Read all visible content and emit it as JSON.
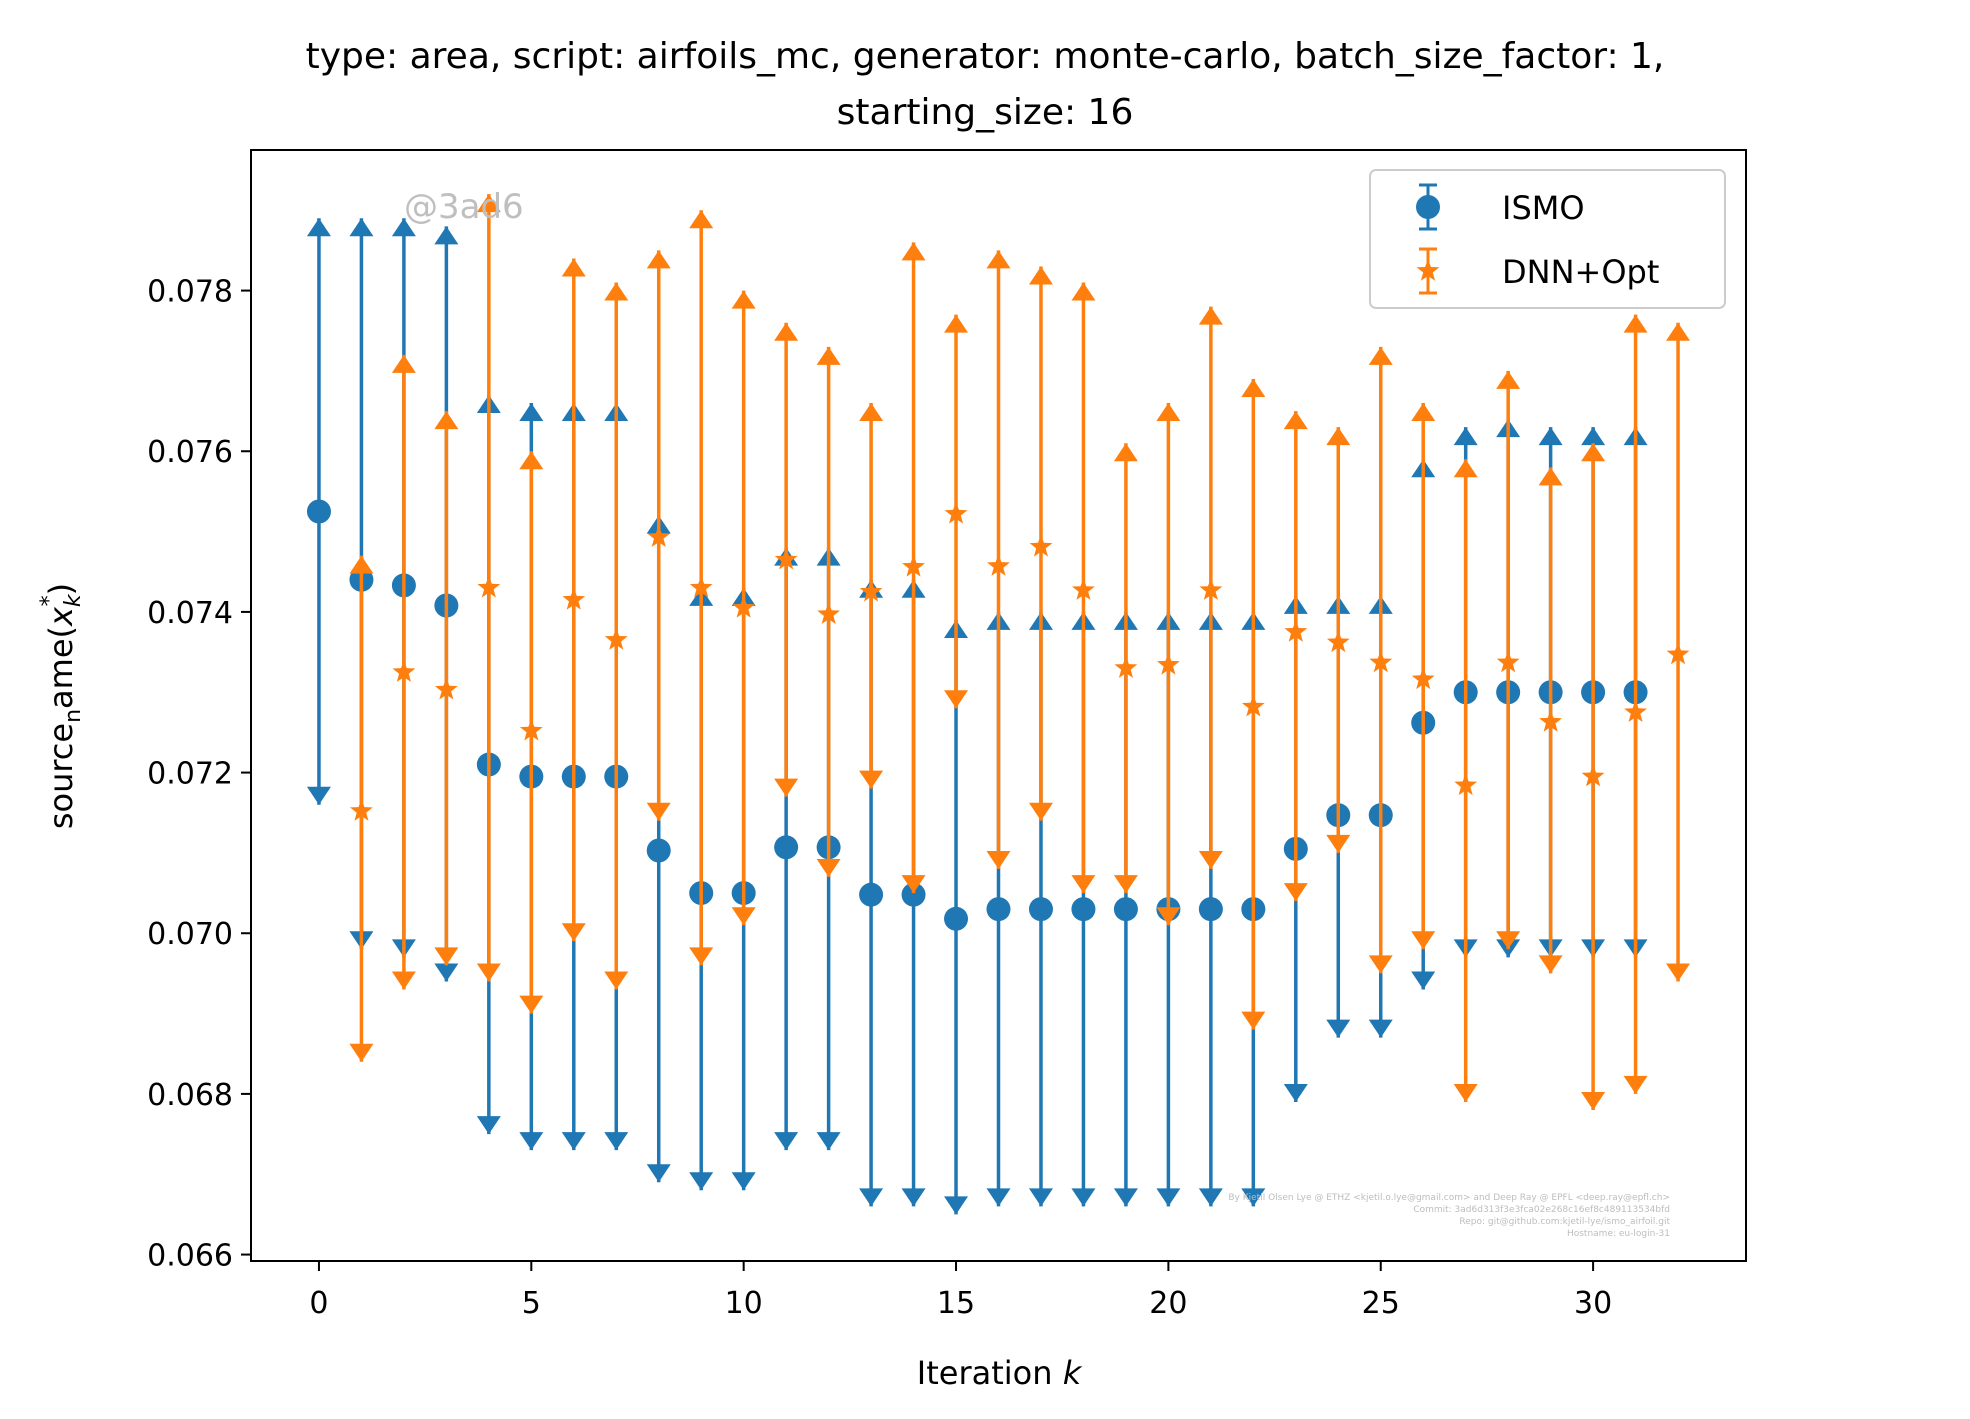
{
  "chart_data": {
    "type": "scatter",
    "title_line1": "type: area, script: airfoils_mc, generator: monte-carlo, batch_size_factor: 1,",
    "title_line2": "starting_size: 16",
    "xlabel_prefix": "Iteration ",
    "xlabel_var": "k",
    "ylabel_text": "source",
    "ylabel_sub": "n",
    "ylabel_rest": "ame(",
    "ylabel_var": "x",
    "ylabel_var_sub": "k",
    "ylabel_var_sup": "*",
    "ylabel_close": ")",
    "xlim": [
      -1.6,
      33.6
    ],
    "ylim": [
      0.06592,
      0.07975
    ],
    "x_ticks": [
      0,
      5,
      10,
      15,
      20,
      25,
      30
    ],
    "x_tick_labels": [
      "0",
      "5",
      "10",
      "15",
      "20",
      "25",
      "30"
    ],
    "y_ticks": [
      0.066,
      0.068,
      0.07,
      0.072,
      0.074,
      0.076,
      0.078
    ],
    "y_tick_labels": [
      "0.066",
      "0.068",
      "0.070",
      "0.072",
      "0.074",
      "0.076",
      "0.078"
    ],
    "grid": false,
    "legend": {
      "placement": "top-right"
    },
    "series": [
      {
        "name": "ISMO",
        "color": "#1f77b4",
        "marker": "circle",
        "x": [
          0,
          1,
          2,
          3,
          4,
          5,
          6,
          7,
          8,
          9,
          10,
          11,
          12,
          13,
          14,
          15,
          16,
          17,
          18,
          19,
          20,
          21,
          22,
          23,
          24,
          25,
          26,
          27,
          28,
          29,
          30,
          31
        ],
        "y": [
          0.07525,
          0.0744,
          0.07433,
          0.07408,
          0.0721,
          0.07195,
          0.07195,
          0.07195,
          0.07103,
          0.0705,
          0.0705,
          0.07107,
          0.07107,
          0.07048,
          0.07048,
          0.07018,
          0.0703,
          0.0703,
          0.0703,
          0.0703,
          0.0703,
          0.0703,
          0.0703,
          0.07105,
          0.07147,
          0.07147,
          0.07262,
          0.073,
          0.073,
          0.073,
          0.073,
          0.073
        ],
        "upper": [
          0.0789,
          0.0789,
          0.0789,
          0.0788,
          0.0767,
          0.0766,
          0.0766,
          0.0766,
          0.0752,
          0.0743,
          0.0743,
          0.0748,
          0.0748,
          0.0744,
          0.0744,
          0.0739,
          0.074,
          0.074,
          0.074,
          0.074,
          0.074,
          0.074,
          0.074,
          0.0742,
          0.0742,
          0.0742,
          0.0759,
          0.0763,
          0.0764,
          0.0763,
          0.0763,
          0.0763
        ],
        "lower": [
          0.0716,
          0.0698,
          0.0697,
          0.0694,
          0.0675,
          0.0673,
          0.0673,
          0.0673,
          0.0669,
          0.0668,
          0.0668,
          0.0673,
          0.0673,
          0.0666,
          0.0666,
          0.0665,
          0.0666,
          0.0666,
          0.0666,
          0.0666,
          0.0666,
          0.0666,
          0.0666,
          0.0679,
          0.0687,
          0.0687,
          0.0693,
          0.0697,
          0.0697,
          0.0697,
          0.0697,
          0.0697
        ]
      },
      {
        "name": "DNN+Opt",
        "color": "#ff7f0e",
        "marker": "star",
        "x": [
          1,
          2,
          3,
          4,
          5,
          6,
          7,
          8,
          9,
          10,
          11,
          12,
          13,
          14,
          15,
          16,
          17,
          18,
          19,
          20,
          21,
          22,
          23,
          24,
          25,
          26,
          27,
          28,
          29,
          30,
          31,
          32
        ],
        "y": [
          0.07152,
          0.07325,
          0.07303,
          0.0743,
          0.07252,
          0.07415,
          0.07365,
          0.07493,
          0.0743,
          0.07405,
          0.07465,
          0.07397,
          0.07425,
          0.07456,
          0.07522,
          0.07457,
          0.07481,
          0.07427,
          0.0733,
          0.07334,
          0.07427,
          0.07282,
          0.07375,
          0.07362,
          0.07337,
          0.07316,
          0.07184,
          0.07337,
          0.07263,
          0.07195,
          0.07275,
          0.07347
        ],
        "upper": [
          0.0747,
          0.0772,
          0.0765,
          0.0792,
          0.076,
          0.0784,
          0.0781,
          0.0785,
          0.079,
          0.078,
          0.0776,
          0.0773,
          0.0766,
          0.0786,
          0.0777,
          0.0785,
          0.0783,
          0.0781,
          0.0761,
          0.0766,
          0.0778,
          0.0769,
          0.0765,
          0.0763,
          0.0773,
          0.0766,
          0.0759,
          0.077,
          0.0758,
          0.0761,
          0.0777,
          0.0776
        ],
        "lower": [
          0.0684,
          0.0693,
          0.0696,
          0.0694,
          0.069,
          0.0699,
          0.0693,
          0.0714,
          0.0696,
          0.0701,
          0.0717,
          0.0707,
          0.0718,
          0.0705,
          0.0728,
          0.0708,
          0.0714,
          0.0705,
          0.0705,
          0.0701,
          0.0708,
          0.0688,
          0.0704,
          0.071,
          0.0695,
          0.0698,
          0.0679,
          0.0698,
          0.0695,
          0.0678,
          0.068,
          0.0694
        ]
      }
    ],
    "annotations": {
      "watermark": "@3ad6",
      "footer_lines": [
        "By Kjetil Olsen Lye @ ETHZ <kjetil.o.lye@gmail.com> and Deep Ray @ EPFL <deep.ray@epfl.ch>",
        "Commit: 3ad6d313f3e3fca02e268c16ef8c489113534bfd",
        "Repo: git@github.com:kjetil-lye/ismo_airfoil.git",
        "Hostname: eu-login-31"
      ]
    }
  }
}
